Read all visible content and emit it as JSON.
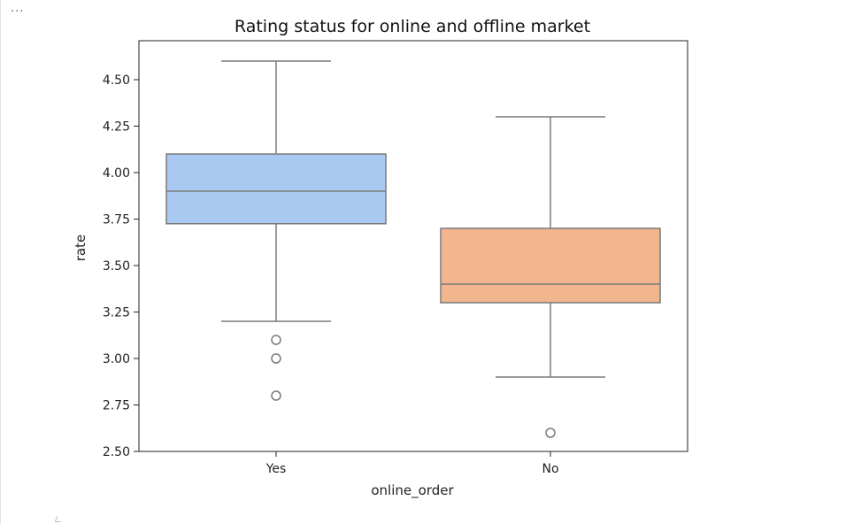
{
  "cell": {
    "ellipsis": "..."
  },
  "chart_data": {
    "type": "box",
    "title": "Rating status for online and offline market",
    "xlabel": "online_order",
    "ylabel": "rate",
    "ylim": [
      2.5,
      4.65
    ],
    "yticks": [
      "2.50",
      "2.75",
      "3.00",
      "3.25",
      "3.50",
      "3.75",
      "4.00",
      "4.25",
      "4.50"
    ],
    "categories": [
      "Yes",
      "No"
    ],
    "boxes": [
      {
        "category": "Yes",
        "whisker_low": 3.2,
        "q1": 3.725,
        "median": 3.9,
        "q3": 4.1,
        "whisker_high": 4.6,
        "outliers": [
          3.1,
          3.0,
          2.8
        ],
        "color": "#a9c9f0"
      },
      {
        "category": "No",
        "whisker_low": 2.9,
        "q1": 3.3,
        "median": 3.4,
        "q3": 3.7,
        "whisker_high": 4.3,
        "outliers": [
          2.6
        ],
        "color": "#f2b68e"
      }
    ],
    "grid": false,
    "line_color": "#7a7a7a"
  }
}
